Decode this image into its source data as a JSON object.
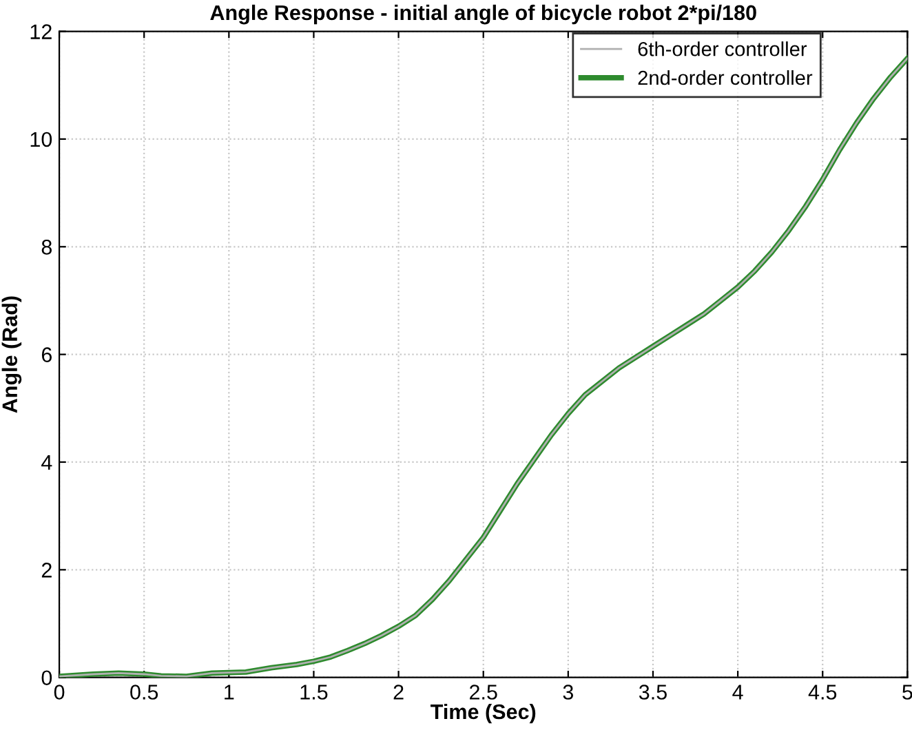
{
  "chart_data": {
    "type": "line",
    "title": "Angle Response - initial angle of bicycle robot 2*pi/180",
    "xlabel": "Time (Sec)",
    "ylabel": "Angle (Rad)",
    "x": [
      0,
      0.2,
      0.35,
      0.5,
      0.6,
      0.75,
      0.9,
      1.0,
      1.1,
      1.25,
      1.4,
      1.5,
      1.6,
      1.7,
      1.8,
      1.9,
      2.0,
      2.1,
      2.2,
      2.3,
      2.4,
      2.5,
      2.6,
      2.7,
      2.8,
      2.9,
      3.0,
      3.1,
      3.2,
      3.3,
      3.4,
      3.5,
      3.6,
      3.7,
      3.8,
      3.9,
      4.0,
      4.1,
      4.2,
      4.3,
      4.4,
      4.5,
      4.6,
      4.7,
      4.8,
      4.9,
      5.0
    ],
    "series": [
      {
        "name": "6th-order controller",
        "color": "#b0b0b0",
        "values": [
          0.02,
          0.06,
          0.08,
          0.06,
          0.03,
          0.02,
          0.08,
          0.09,
          0.1,
          0.18,
          0.24,
          0.3,
          0.38,
          0.5,
          0.63,
          0.78,
          0.95,
          1.15,
          1.45,
          1.8,
          2.2,
          2.6,
          3.1,
          3.6,
          4.05,
          4.5,
          4.9,
          5.25,
          5.5,
          5.75,
          5.95,
          6.15,
          6.35,
          6.55,
          6.75,
          7.0,
          7.25,
          7.55,
          7.9,
          8.3,
          8.75,
          9.25,
          9.8,
          10.3,
          10.75,
          11.15,
          11.5
        ]
      },
      {
        "name": "2nd-order controller",
        "color": "#2e8b2e",
        "values": [
          0.02,
          0.06,
          0.08,
          0.06,
          0.03,
          0.02,
          0.08,
          0.09,
          0.1,
          0.18,
          0.24,
          0.3,
          0.38,
          0.5,
          0.63,
          0.78,
          0.95,
          1.15,
          1.45,
          1.8,
          2.2,
          2.6,
          3.1,
          3.6,
          4.05,
          4.5,
          4.9,
          5.25,
          5.5,
          5.75,
          5.95,
          6.15,
          6.35,
          6.55,
          6.75,
          7.0,
          7.25,
          7.55,
          7.9,
          8.3,
          8.75,
          9.25,
          9.8,
          10.3,
          10.75,
          11.15,
          11.5
        ]
      }
    ],
    "xlim": [
      0,
      5
    ],
    "xticks": [
      0,
      0.5,
      1,
      1.5,
      2,
      2.5,
      3,
      3.5,
      4,
      4.5,
      5
    ],
    "ylim": [
      0,
      12
    ],
    "yticks": [
      0,
      2,
      4,
      6,
      8,
      10,
      12
    ],
    "grid": true,
    "legend": "top right",
    "marker": "none",
    "line_style": "solid"
  }
}
